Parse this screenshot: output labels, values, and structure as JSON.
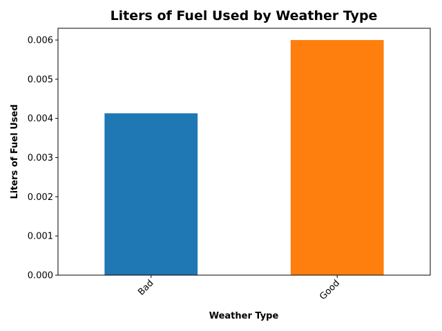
{
  "chart_data": {
    "type": "bar",
    "title": "Liters of Fuel Used by Weather Type",
    "xlabel": "Weather Type",
    "ylabel": "Liters of Fuel Used",
    "categories": [
      "Bad",
      "Good"
    ],
    "values": [
      0.00413,
      0.006
    ],
    "colors": [
      "#1f77b4",
      "#ff7f0e"
    ],
    "ylim": [
      0,
      0.0063
    ],
    "yticks": [
      0.0,
      0.001,
      0.002,
      0.003,
      0.004,
      0.005,
      0.006
    ],
    "ytick_labels": [
      "0.000",
      "0.001",
      "0.002",
      "0.003",
      "0.004",
      "0.005",
      "0.006"
    ],
    "grid": false,
    "legend": "none"
  }
}
